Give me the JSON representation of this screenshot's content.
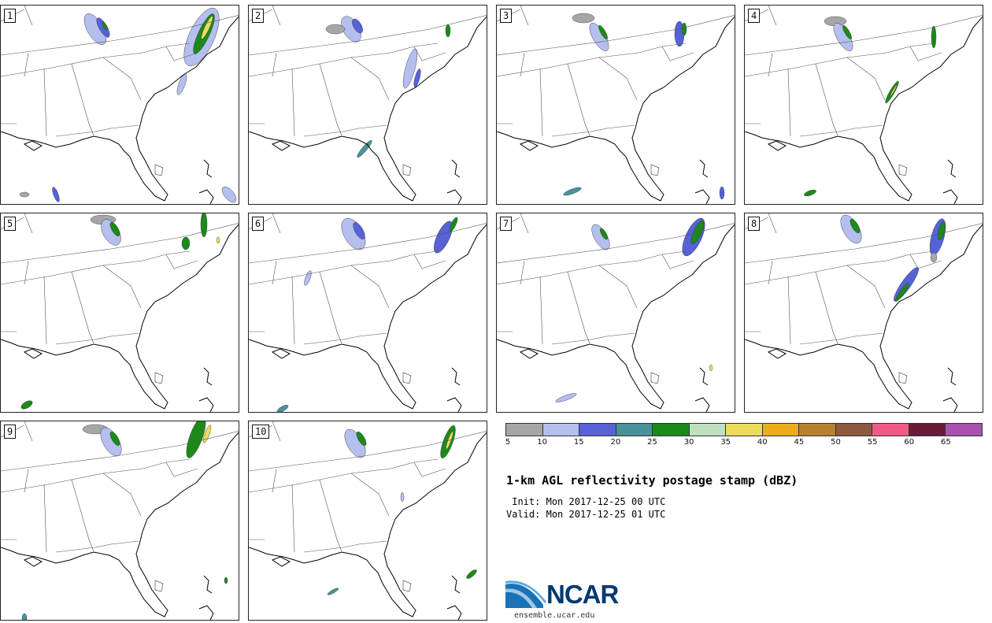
{
  "product": {
    "title": "1-km AGL reflectivity postage stamp (dBZ)",
    "init_label": " Init:",
    "init_value": "Mon 2017-12-25 00 UTC",
    "valid_label": "Valid:",
    "valid_value": "Mon 2017-12-25 01 UTC"
  },
  "members": [
    {
      "label": "1"
    },
    {
      "label": "2"
    },
    {
      "label": "3"
    },
    {
      "label": "4"
    },
    {
      "label": "5"
    },
    {
      "label": "6"
    },
    {
      "label": "7"
    },
    {
      "label": "8"
    },
    {
      "label": "9"
    },
    {
      "label": "10"
    }
  ],
  "colorbar": {
    "unit": "dBZ",
    "colors": [
      "#a6a6a6",
      "#b4bfee",
      "#5662d6",
      "#4b9199",
      "#1c8a19",
      "#bfdfbf",
      "#ecdc5c",
      "#eeab1c",
      "#b8812e",
      "#8c5a3e",
      "#ef5b84",
      "#6c1a3a",
      "#aa52ad"
    ],
    "tick_labels": [
      "5",
      "10",
      "15",
      "20",
      "25",
      "30",
      "35",
      "40",
      "45",
      "50",
      "55",
      "60",
      "65"
    ]
  },
  "branding": {
    "logo_text": "NCAR",
    "url": "ensemble.ucar.edu"
  }
}
